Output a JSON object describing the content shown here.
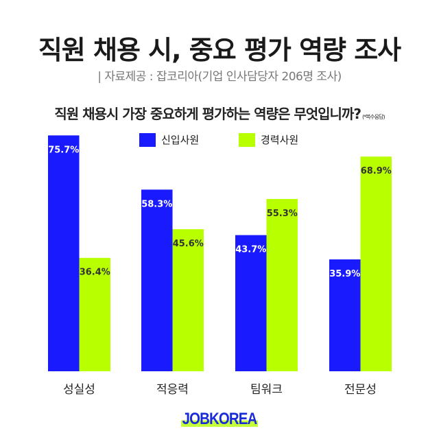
{
  "header": {
    "title": "직원 채용 시, 중요 평가 역량 조사",
    "subtitle": "| 자료제공 : 잡코리아(기업 인사담당자 206명 조사)"
  },
  "chart_data": {
    "type": "bar",
    "title": "직원 채용시 가장 중요하게 평가하는 역량은 무엇입니까?",
    "note": "(*복수응답)",
    "categories": [
      "성실성",
      "적응력",
      "팀워크",
      "전문성"
    ],
    "series": [
      {
        "name": "신입사원",
        "color": "#1a1aff",
        "values": [
          75.7,
          58.3,
          43.7,
          35.9
        ]
      },
      {
        "name": "경력사원",
        "color": "#b8ff00",
        "values": [
          36.4,
          45.6,
          55.3,
          68.9
        ]
      }
    ],
    "value_suffix": "%",
    "ylim": [
      0,
      100
    ],
    "grid": false,
    "legend": "top-center"
  },
  "branding": {
    "logo": "JOBKOREA"
  }
}
